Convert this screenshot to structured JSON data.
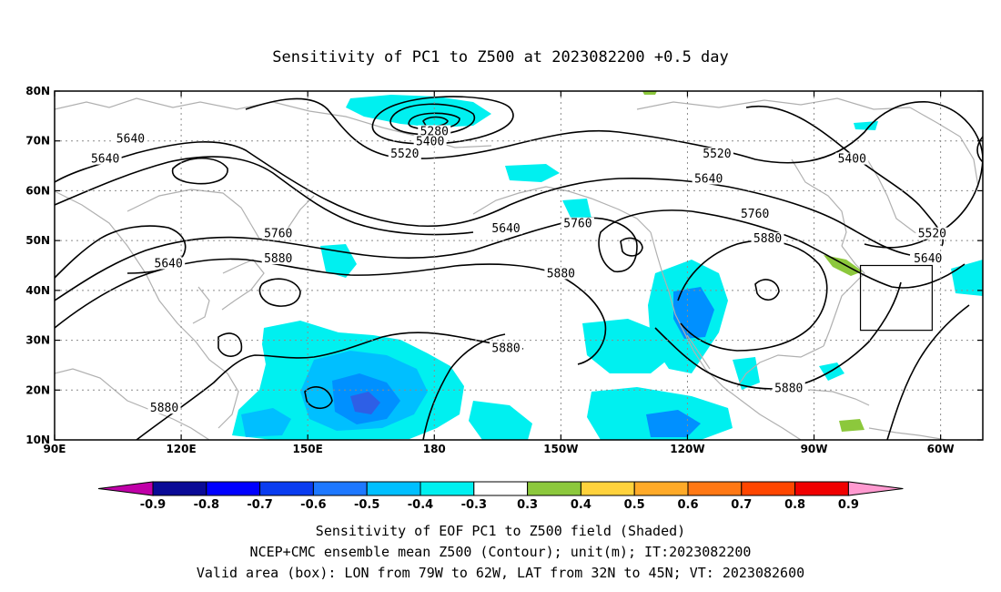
{
  "title": "Sensitivity of PC1 to Z500 at 2023082200 +0.5 day",
  "map": {
    "lon_range": [
      90,
      310
    ],
    "lat_range": [
      10,
      80
    ],
    "x_ticks": [
      {
        "lon": 90,
        "label": "90E"
      },
      {
        "lon": 120,
        "label": "120E"
      },
      {
        "lon": 150,
        "label": "150E"
      },
      {
        "lon": 180,
        "label": "180"
      },
      {
        "lon": 210,
        "label": "150W"
      },
      {
        "lon": 240,
        "label": "120W"
      },
      {
        "lon": 270,
        "label": "90W"
      },
      {
        "lon": 300,
        "label": "60W"
      }
    ],
    "y_ticks": [
      {
        "lat": 80,
        "label": "80N"
      },
      {
        "lat": 70,
        "label": "70N"
      },
      {
        "lat": 60,
        "label": "60N"
      },
      {
        "lat": 50,
        "label": "50N"
      },
      {
        "lat": 40,
        "label": "40N"
      },
      {
        "lat": 30,
        "label": "30N"
      },
      {
        "lat": 20,
        "label": "20N"
      },
      {
        "lat": 10,
        "label": "10N"
      }
    ],
    "contour_labels": [
      {
        "text": "5640",
        "lon": 108,
        "lat": 70
      },
      {
        "text": "5640",
        "lon": 102,
        "lat": 66
      },
      {
        "text": "5640",
        "lon": 117,
        "lat": 45
      },
      {
        "text": "5760",
        "lon": 143,
        "lat": 51
      },
      {
        "text": "5880",
        "lon": 143,
        "lat": 46
      },
      {
        "text": "5880",
        "lon": 116,
        "lat": 16
      },
      {
        "text": "5280",
        "lon": 180,
        "lat": 71.5
      },
      {
        "text": "5400",
        "lon": 179,
        "lat": 69.5
      },
      {
        "text": "5520",
        "lon": 173,
        "lat": 67
      },
      {
        "text": "5640",
        "lon": 197,
        "lat": 52
      },
      {
        "text": "5760",
        "lon": 214,
        "lat": 53
      },
      {
        "text": "5880",
        "lon": 210,
        "lat": 43
      },
      {
        "text": "5880",
        "lon": 197,
        "lat": 28
      },
      {
        "text": "5520",
        "lon": 247,
        "lat": 67
      },
      {
        "text": "5640",
        "lon": 245,
        "lat": 62
      },
      {
        "text": "5760",
        "lon": 256,
        "lat": 55
      },
      {
        "text": "5880",
        "lon": 259,
        "lat": 50
      },
      {
        "text": "5400",
        "lon": 279,
        "lat": 66
      },
      {
        "text": "5520",
        "lon": 298,
        "lat": 51
      },
      {
        "text": "5640",
        "lon": 297,
        "lat": 46
      },
      {
        "text": "5880",
        "lon": 264,
        "lat": 20
      }
    ],
    "valid_box": {
      "lon_min": 281,
      "lon_max": 298,
      "lat_min": 32,
      "lat_max": 45
    },
    "shading_color_scale": "cool negative / warm positive"
  },
  "colorbar": {
    "labels": [
      "-0.9",
      "-0.8",
      "-0.7",
      "-0.6",
      "-0.5",
      "-0.4",
      "-0.3",
      "0.3",
      "0.4",
      "0.5",
      "0.6",
      "0.7",
      "0.8",
      "0.9"
    ],
    "low_arrow_color": "#c000a8",
    "high_arrow_color": "#ff9ad0",
    "colors": [
      "#0a0a96",
      "#0000ff",
      "#0a3cf0",
      "#1e78ff",
      "#00bfff",
      "#00f0f0",
      "#ffffff",
      "#8cc83c",
      "#ffd23c",
      "#ffaa28",
      "#ff7814",
      "#ff4600",
      "#f00000"
    ]
  },
  "captions": {
    "line1": "Sensitivity of EOF PC1 to Z500 field (Shaded)",
    "line2": "NCEP+CMC ensemble mean Z500 (Contour); unit(m); IT:2023082200",
    "line3": "Valid area (box): LON from 79W to 62W, LAT from 32N to 45N; VT: 2023082600"
  }
}
